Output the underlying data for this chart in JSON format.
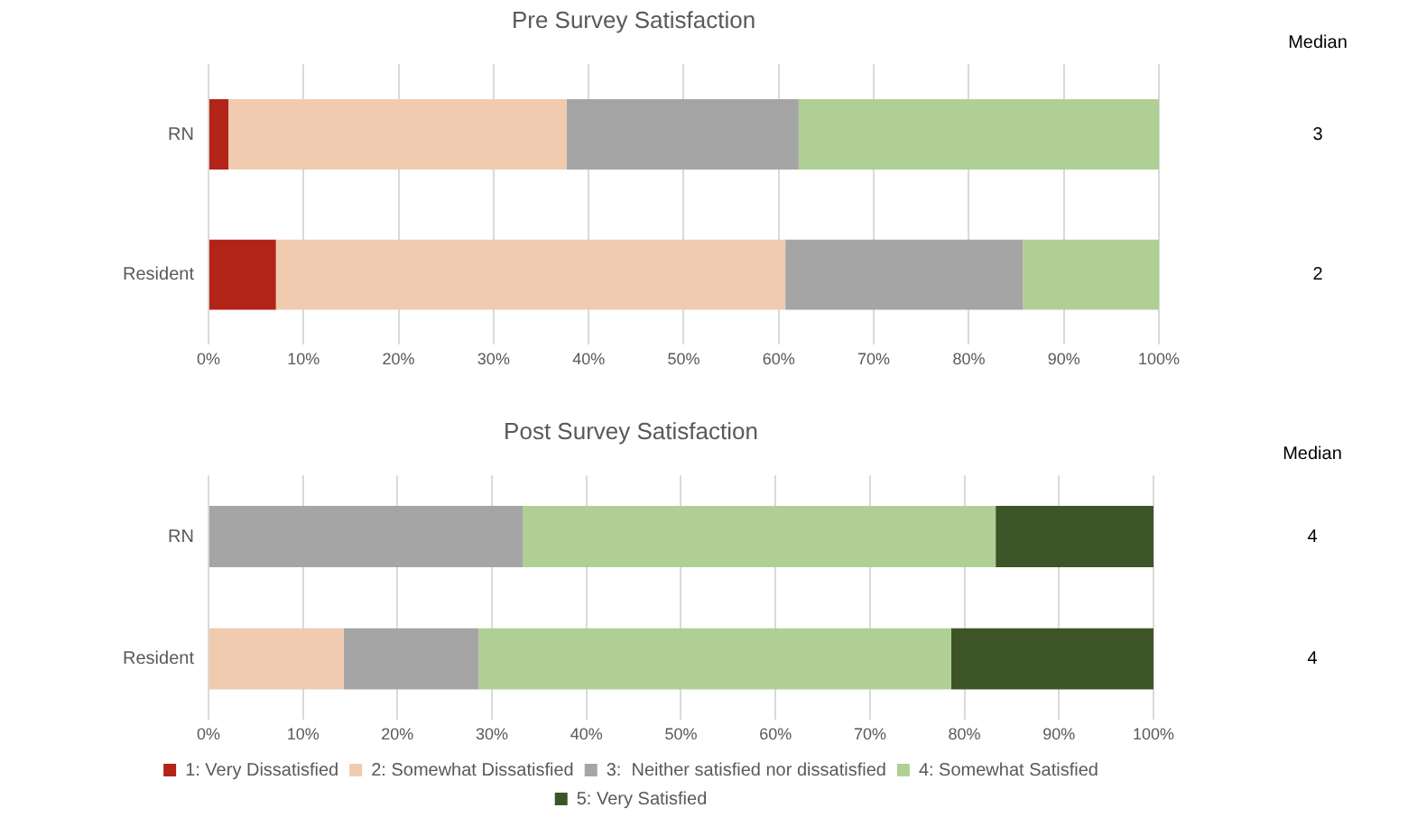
{
  "chart_data": [
    {
      "type": "bar",
      "title": "Pre Survey Satisfaction",
      "orientation": "horizontal",
      "stacked": true,
      "categories": [
        "RN",
        "Resident"
      ],
      "series": [
        {
          "color": "#b22418",
          "values": [
            2.1,
            7.1
          ]
        },
        {
          "color": "#f0cbb0",
          "values": [
            35.6,
            53.6
          ]
        },
        {
          "color": "#a5a5a5",
          "values": [
            24.4,
            25.0
          ]
        },
        {
          "color": "#b0cf95",
          "values": [
            37.9,
            14.3
          ]
        }
      ],
      "xlim": [
        0,
        100
      ],
      "xticks": [
        {
          "value": 0,
          "label": "0%"
        },
        {
          "value": 10,
          "label": "10%"
        },
        {
          "value": 20,
          "label": "20%"
        },
        {
          "value": 30,
          "label": "30%"
        },
        {
          "value": 40,
          "label": "40%"
        },
        {
          "value": 50,
          "label": "50%"
        },
        {
          "value": 60,
          "label": "60%"
        },
        {
          "value": 70,
          "label": "70%"
        },
        {
          "value": 80,
          "label": "80%"
        },
        {
          "value": 90,
          "label": "90%"
        },
        {
          "value": 100,
          "label": "100%"
        }
      ],
      "grid": "x",
      "legend": false,
      "annotations": [
        "Median",
        "3",
        "2"
      ]
    },
    {
      "type": "bar",
      "title": "Post Survey Satisfaction",
      "orientation": "horizontal",
      "stacked": true,
      "categories": [
        "RN",
        "Resident"
      ],
      "series": [
        {
          "name": "1: Very Dissatisfied",
          "color": "#b22418",
          "values": [
            0,
            0
          ]
        },
        {
          "name": "2: Somewhat Dissatisfied",
          "color": "#f0cbb0",
          "values": [
            0,
            14.3
          ]
        },
        {
          "name": "3:  Neither satisfied nor dissatisfied",
          "color": "#a5a5a5",
          "values": [
            33.3,
            14.3
          ]
        },
        {
          "name": "4: Somewhat Satisfied",
          "color": "#b0cf95",
          "values": [
            50.0,
            50.0
          ]
        },
        {
          "name": "5: Very Satisfied",
          "color": "#3d5526",
          "values": [
            16.7,
            21.4
          ]
        }
      ],
      "xlim": [
        0,
        100
      ],
      "xticks": [
        {
          "value": 0,
          "label": "0%"
        },
        {
          "value": 10,
          "label": "10%"
        },
        {
          "value": 20,
          "label": "20%"
        },
        {
          "value": 30,
          "label": "30%"
        },
        {
          "value": 40,
          "label": "40%"
        },
        {
          "value": 50,
          "label": "50%"
        },
        {
          "value": 60,
          "label": "60%"
        },
        {
          "value": 70,
          "label": "70%"
        },
        {
          "value": 80,
          "label": "80%"
        },
        {
          "value": 90,
          "label": "90%"
        },
        {
          "value": 100,
          "label": "100%"
        }
      ],
      "grid": "x",
      "legend": "bottom",
      "annotations": [
        "Median",
        "4",
        "4"
      ]
    }
  ]
}
